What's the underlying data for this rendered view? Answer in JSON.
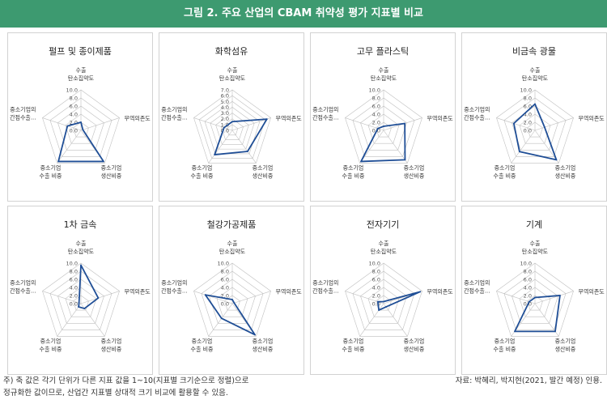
{
  "title": "그림 2. 주요 산업의 CBAM 취약성 평가 지표별 비교",
  "axis_labels": [
    [
      "수출",
      "탄소집약도"
    ],
    [
      "무역의존도"
    ],
    [
      "중소기업",
      "생산비중"
    ],
    [
      "중소기업",
      "수출 비중"
    ],
    [
      "중소기업의",
      "간접수출..."
    ]
  ],
  "colors": {
    "title_bg": "#3d9a70",
    "line": "#1f4e96",
    "grid": "#bfbfbf"
  },
  "chart_data": [
    {
      "type": "radar",
      "title": "펄프 및 종이제품",
      "ticks": [
        "10.0",
        "8.0",
        "6.0",
        "4.0",
        "2.0",
        "0.0"
      ],
      "rmax": 10,
      "values": [
        2.0,
        0.5,
        9.5,
        9.5,
        3.5
      ]
    },
    {
      "type": "radar",
      "title": "화학섬유",
      "ticks": [
        "7.0",
        "6.0",
        "5.0",
        "4.0",
        "3.0",
        "2.0",
        "1.0",
        "0.0"
      ],
      "rmax": 7,
      "values": [
        1.5,
        6.3,
        4.5,
        5.2,
        1.5
      ]
    },
    {
      "type": "radar",
      "title": "고무 플라스틱",
      "ticks": [
        "10.0",
        "8.0",
        "6.0",
        "4.0",
        "2.0",
        "0.0"
      ],
      "rmax": 10,
      "values": [
        1.0,
        5.5,
        9.0,
        9.5,
        1.5
      ]
    },
    {
      "type": "radar",
      "title": "비금속 광물",
      "ticks": [
        "10.0",
        "8.0",
        "6.0",
        "4.0",
        "2.0",
        "0.0"
      ],
      "rmax": 10,
      "values": [
        6.5,
        2.5,
        9.0,
        6.5,
        5.5
      ]
    },
    {
      "type": "radar",
      "title": "1차 금속",
      "ticks": [
        "10.0",
        "8.0",
        "6.0",
        "4.0",
        "2.0",
        "0.0"
      ],
      "rmax": 10,
      "values": [
        9.5,
        4.5,
        1.5,
        1.0,
        0.5
      ]
    },
    {
      "type": "radar",
      "title": "철강가공제품",
      "ticks": [
        "10.0",
        "8.0",
        "6.0",
        "4.0",
        "2.0",
        "0.0"
      ],
      "rmax": 10,
      "values": [
        1.0,
        0.5,
        9.5,
        4.5,
        7.0
      ]
    },
    {
      "type": "radar",
      "title": "전자기기",
      "ticks": [
        "10.0",
        "8.0",
        "6.0",
        "4.0",
        "2.0",
        "0.0"
      ],
      "rmax": 10,
      "values": [
        0.5,
        9.5,
        1.0,
        2.0,
        1.5
      ]
    },
    {
      "type": "radar",
      "title": "기계",
      "ticks": [
        "10.0",
        "8.0",
        "6.0",
        "4.0",
        "2.0",
        "0.0"
      ],
      "rmax": 10,
      "values": [
        1.5,
        6.5,
        8.5,
        8.5,
        1.5
      ]
    }
  ],
  "note_lines": [
    "주) 축 값은 각기 단위가 다른 지표 값을 1~10(지표별 크기순으로 정렬)으로",
    "     정규화한 값이므로, 산업간 지표별 상대적 크기 비교에 활용할 수 있음."
  ],
  "source": "자료: 박혜리, 박지현(2021, 발간 예정) 인용."
}
